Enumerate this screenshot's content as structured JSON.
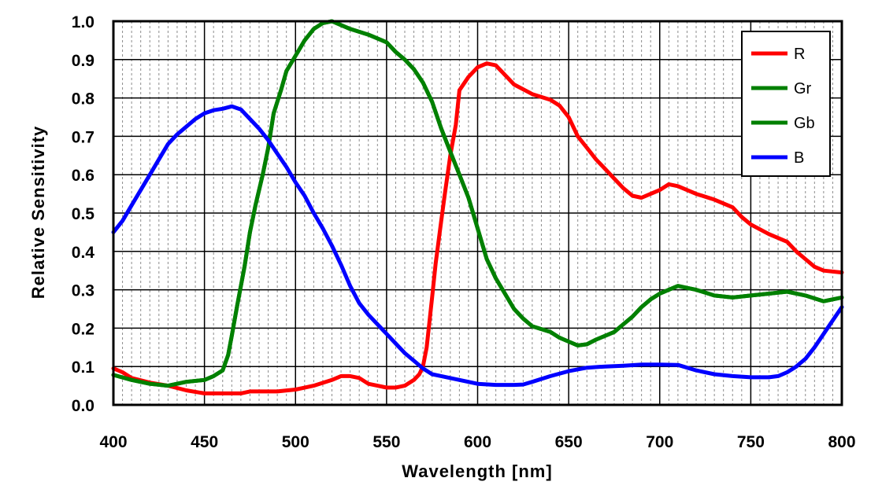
{
  "chart_data": {
    "type": "line",
    "title": "",
    "xlabel": "Wavelength [nm]",
    "ylabel": "Relative Sensitivity",
    "xlim": [
      400,
      800
    ],
    "ylim": [
      0,
      1.0
    ],
    "x_ticks": [
      400,
      450,
      500,
      550,
      600,
      650,
      700,
      750,
      800
    ],
    "x_tick_labels": [
      "400",
      "450",
      "500",
      "550",
      "600",
      "650",
      "700",
      "750",
      "800"
    ],
    "y_ticks": [
      0.0,
      0.1,
      0.2,
      0.3,
      0.4,
      0.5,
      0.6,
      0.7,
      0.8,
      0.9,
      1.0
    ],
    "y_tick_labels": [
      "0.0",
      "0.1",
      "0.2",
      "0.3",
      "0.4",
      "0.5",
      "0.6",
      "0.7",
      "0.8",
      "0.9",
      "1.0"
    ],
    "x_minor_step": 5,
    "grid": true,
    "legend_position": "top-right",
    "series": [
      {
        "name": "R",
        "color": "#ff0000",
        "points": [
          [
            400,
            0.095
          ],
          [
            405,
            0.085
          ],
          [
            410,
            0.07
          ],
          [
            420,
            0.058
          ],
          [
            430,
            0.05
          ],
          [
            440,
            0.038
          ],
          [
            450,
            0.03
          ],
          [
            460,
            0.03
          ],
          [
            470,
            0.03
          ],
          [
            475,
            0.035
          ],
          [
            480,
            0.035
          ],
          [
            490,
            0.035
          ],
          [
            500,
            0.04
          ],
          [
            510,
            0.05
          ],
          [
            520,
            0.065
          ],
          [
            525,
            0.075
          ],
          [
            530,
            0.075
          ],
          [
            535,
            0.07
          ],
          [
            540,
            0.055
          ],
          [
            545,
            0.05
          ],
          [
            550,
            0.045
          ],
          [
            555,
            0.045
          ],
          [
            560,
            0.05
          ],
          [
            565,
            0.065
          ],
          [
            568,
            0.08
          ],
          [
            570,
            0.1
          ],
          [
            572,
            0.15
          ],
          [
            575,
            0.28
          ],
          [
            577,
            0.37
          ],
          [
            580,
            0.48
          ],
          [
            582,
            0.55
          ],
          [
            585,
            0.65
          ],
          [
            588,
            0.73
          ],
          [
            590,
            0.82
          ],
          [
            595,
            0.855
          ],
          [
            600,
            0.88
          ],
          [
            605,
            0.89
          ],
          [
            610,
            0.885
          ],
          [
            615,
            0.86
          ],
          [
            620,
            0.835
          ],
          [
            630,
            0.81
          ],
          [
            640,
            0.795
          ],
          [
            645,
            0.78
          ],
          [
            650,
            0.75
          ],
          [
            655,
            0.7
          ],
          [
            660,
            0.67
          ],
          [
            665,
            0.64
          ],
          [
            670,
            0.615
          ],
          [
            675,
            0.59
          ],
          [
            680,
            0.565
          ],
          [
            685,
            0.545
          ],
          [
            690,
            0.54
          ],
          [
            695,
            0.55
          ],
          [
            700,
            0.56
          ],
          [
            705,
            0.575
          ],
          [
            710,
            0.57
          ],
          [
            715,
            0.56
          ],
          [
            720,
            0.55
          ],
          [
            730,
            0.535
          ],
          [
            740,
            0.515
          ],
          [
            745,
            0.49
          ],
          [
            750,
            0.47
          ],
          [
            760,
            0.445
          ],
          [
            770,
            0.425
          ],
          [
            775,
            0.4
          ],
          [
            780,
            0.38
          ],
          [
            785,
            0.36
          ],
          [
            790,
            0.35
          ],
          [
            800,
            0.345
          ]
        ]
      },
      {
        "name": "Gr",
        "color": "#008000",
        "points": [
          [
            400,
            0.078
          ],
          [
            410,
            0.065
          ],
          [
            420,
            0.055
          ],
          [
            430,
            0.05
          ],
          [
            440,
            0.06
          ],
          [
            450,
            0.065
          ],
          [
            455,
            0.075
          ],
          [
            460,
            0.09
          ],
          [
            463,
            0.13
          ],
          [
            465,
            0.18
          ],
          [
            468,
            0.26
          ],
          [
            472,
            0.36
          ],
          [
            475,
            0.45
          ],
          [
            478,
            0.52
          ],
          [
            482,
            0.6
          ],
          [
            485,
            0.67
          ],
          [
            488,
            0.76
          ],
          [
            492,
            0.82
          ],
          [
            495,
            0.87
          ],
          [
            500,
            0.91
          ],
          [
            505,
            0.95
          ],
          [
            510,
            0.98
          ],
          [
            515,
            0.995
          ],
          [
            520,
            1.0
          ],
          [
            525,
            0.99
          ],
          [
            530,
            0.98
          ],
          [
            540,
            0.965
          ],
          [
            550,
            0.945
          ],
          [
            555,
            0.92
          ],
          [
            560,
            0.9
          ],
          [
            565,
            0.875
          ],
          [
            570,
            0.84
          ],
          [
            575,
            0.79
          ],
          [
            580,
            0.72
          ],
          [
            585,
            0.66
          ],
          [
            590,
            0.6
          ],
          [
            595,
            0.54
          ],
          [
            600,
            0.46
          ],
          [
            605,
            0.38
          ],
          [
            610,
            0.33
          ],
          [
            615,
            0.29
          ],
          [
            620,
            0.25
          ],
          [
            625,
            0.225
          ],
          [
            630,
            0.205
          ],
          [
            640,
            0.19
          ],
          [
            645,
            0.175
          ],
          [
            650,
            0.165
          ],
          [
            655,
            0.155
          ],
          [
            660,
            0.158
          ],
          [
            665,
            0.17
          ],
          [
            670,
            0.18
          ],
          [
            675,
            0.19
          ],
          [
            680,
            0.21
          ],
          [
            685,
            0.23
          ],
          [
            690,
            0.255
          ],
          [
            695,
            0.275
          ],
          [
            700,
            0.29
          ],
          [
            705,
            0.3
          ],
          [
            710,
            0.31
          ],
          [
            715,
            0.305
          ],
          [
            720,
            0.3
          ],
          [
            730,
            0.285
          ],
          [
            740,
            0.28
          ],
          [
            750,
            0.285
          ],
          [
            760,
            0.29
          ],
          [
            770,
            0.295
          ],
          [
            780,
            0.285
          ],
          [
            790,
            0.27
          ],
          [
            800,
            0.28
          ]
        ]
      },
      {
        "name": "Gb",
        "color": "#008000",
        "points": [
          [
            400,
            0.078
          ],
          [
            410,
            0.065
          ],
          [
            420,
            0.055
          ],
          [
            430,
            0.05
          ],
          [
            440,
            0.06
          ],
          [
            450,
            0.065
          ],
          [
            455,
            0.075
          ],
          [
            460,
            0.09
          ],
          [
            463,
            0.13
          ],
          [
            465,
            0.18
          ],
          [
            468,
            0.26
          ],
          [
            472,
            0.36
          ],
          [
            475,
            0.45
          ],
          [
            478,
            0.52
          ],
          [
            482,
            0.6
          ],
          [
            485,
            0.67
          ],
          [
            488,
            0.76
          ],
          [
            492,
            0.82
          ],
          [
            495,
            0.87
          ],
          [
            500,
            0.91
          ],
          [
            505,
            0.95
          ],
          [
            510,
            0.98
          ],
          [
            515,
            0.995
          ],
          [
            520,
            1.0
          ],
          [
            525,
            0.99
          ],
          [
            530,
            0.98
          ],
          [
            540,
            0.965
          ],
          [
            550,
            0.945
          ],
          [
            555,
            0.92
          ],
          [
            560,
            0.9
          ],
          [
            565,
            0.875
          ],
          [
            570,
            0.84
          ],
          [
            575,
            0.79
          ],
          [
            580,
            0.72
          ],
          [
            585,
            0.66
          ],
          [
            590,
            0.6
          ],
          [
            595,
            0.54
          ],
          [
            600,
            0.46
          ],
          [
            605,
            0.38
          ],
          [
            610,
            0.33
          ],
          [
            615,
            0.29
          ],
          [
            620,
            0.25
          ],
          [
            625,
            0.225
          ],
          [
            630,
            0.205
          ],
          [
            640,
            0.19
          ],
          [
            645,
            0.175
          ],
          [
            650,
            0.165
          ],
          [
            655,
            0.155
          ],
          [
            660,
            0.158
          ],
          [
            665,
            0.17
          ],
          [
            670,
            0.18
          ],
          [
            675,
            0.19
          ],
          [
            680,
            0.21
          ],
          [
            685,
            0.23
          ],
          [
            690,
            0.255
          ],
          [
            695,
            0.275
          ],
          [
            700,
            0.29
          ],
          [
            705,
            0.3
          ],
          [
            710,
            0.31
          ],
          [
            715,
            0.305
          ],
          [
            720,
            0.3
          ],
          [
            730,
            0.285
          ],
          [
            740,
            0.28
          ],
          [
            750,
            0.285
          ],
          [
            760,
            0.29
          ],
          [
            770,
            0.295
          ],
          [
            780,
            0.285
          ],
          [
            790,
            0.27
          ],
          [
            800,
            0.28
          ]
        ]
      },
      {
        "name": "B",
        "color": "#0000ff",
        "points": [
          [
            400,
            0.45
          ],
          [
            405,
            0.48
          ],
          [
            410,
            0.52
          ],
          [
            415,
            0.56
          ],
          [
            420,
            0.6
          ],
          [
            425,
            0.64
          ],
          [
            430,
            0.68
          ],
          [
            435,
            0.705
          ],
          [
            440,
            0.725
          ],
          [
            445,
            0.745
          ],
          [
            450,
            0.76
          ],
          [
            455,
            0.768
          ],
          [
            460,
            0.772
          ],
          [
            465,
            0.778
          ],
          [
            470,
            0.77
          ],
          [
            475,
            0.745
          ],
          [
            480,
            0.72
          ],
          [
            485,
            0.69
          ],
          [
            490,
            0.655
          ],
          [
            495,
            0.62
          ],
          [
            500,
            0.58
          ],
          [
            505,
            0.545
          ],
          [
            510,
            0.5
          ],
          [
            515,
            0.46
          ],
          [
            520,
            0.415
          ],
          [
            525,
            0.365
          ],
          [
            530,
            0.31
          ],
          [
            535,
            0.265
          ],
          [
            540,
            0.235
          ],
          [
            545,
            0.21
          ],
          [
            550,
            0.185
          ],
          [
            555,
            0.16
          ],
          [
            560,
            0.135
          ],
          [
            565,
            0.115
          ],
          [
            570,
            0.095
          ],
          [
            575,
            0.08
          ],
          [
            580,
            0.075
          ],
          [
            590,
            0.065
          ],
          [
            600,
            0.055
          ],
          [
            610,
            0.052
          ],
          [
            620,
            0.052
          ],
          [
            625,
            0.053
          ],
          [
            630,
            0.06
          ],
          [
            640,
            0.075
          ],
          [
            650,
            0.088
          ],
          [
            660,
            0.097
          ],
          [
            670,
            0.1
          ],
          [
            680,
            0.102
          ],
          [
            690,
            0.105
          ],
          [
            700,
            0.105
          ],
          [
            710,
            0.104
          ],
          [
            720,
            0.09
          ],
          [
            730,
            0.08
          ],
          [
            740,
            0.075
          ],
          [
            750,
            0.072
          ],
          [
            760,
            0.072
          ],
          [
            765,
            0.075
          ],
          [
            770,
            0.085
          ],
          [
            775,
            0.1
          ],
          [
            780,
            0.12
          ],
          [
            785,
            0.15
          ],
          [
            790,
            0.185
          ],
          [
            795,
            0.22
          ],
          [
            800,
            0.255
          ]
        ]
      }
    ]
  }
}
